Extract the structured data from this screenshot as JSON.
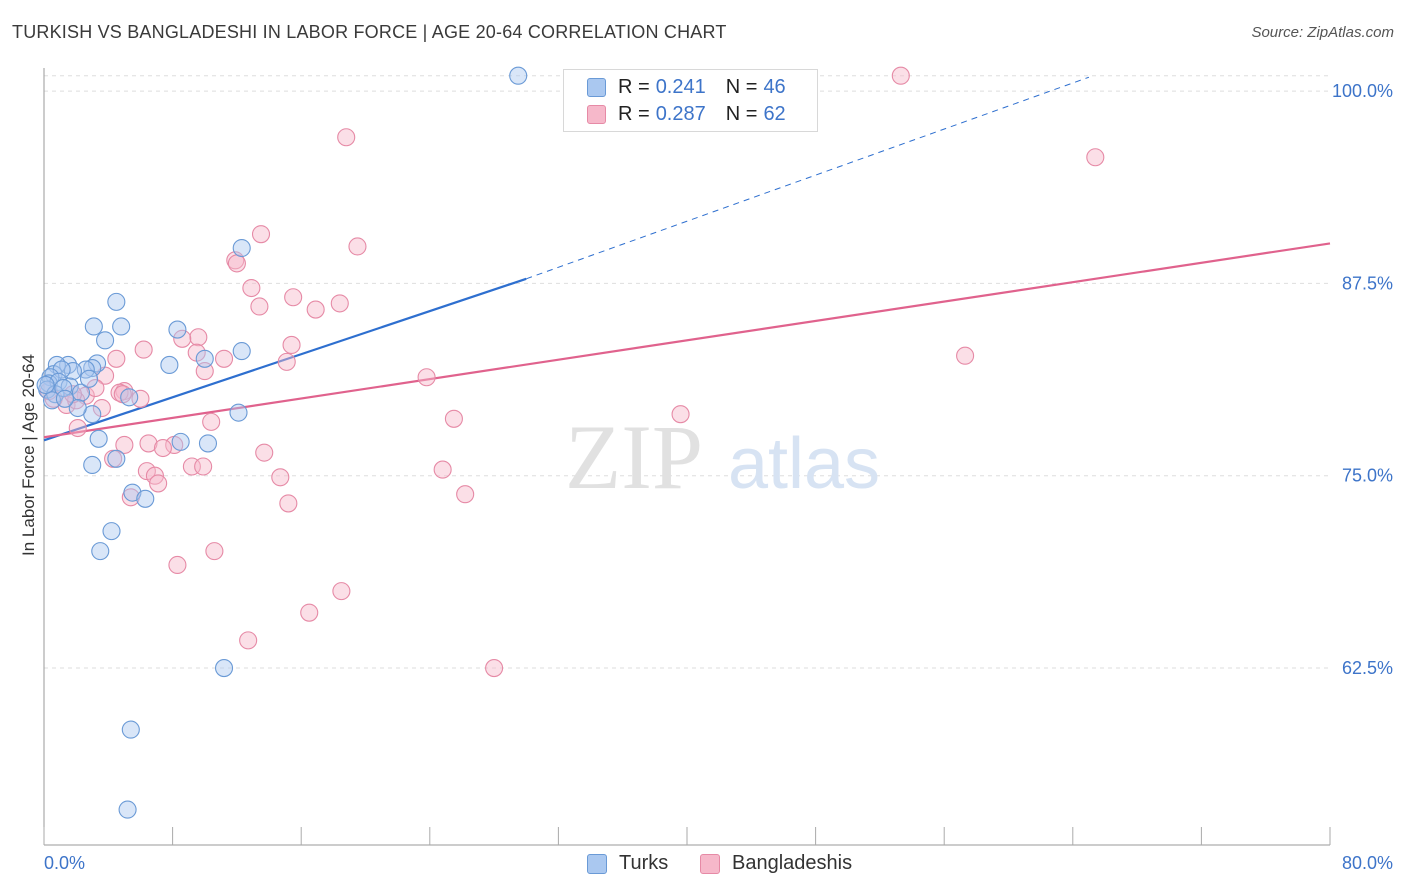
{
  "title": "TURKISH VS BANGLADESHI IN LABOR FORCE | AGE 20-64 CORRELATION CHART",
  "source": "Source: ZipAtlas.com",
  "watermark": {
    "zip": "ZIP",
    "atlas": "atlas"
  },
  "legend": {
    "turks": {
      "r_label": "R =",
      "r_value": "0.241",
      "n_label": "N =",
      "n_value": "46"
    },
    "bangladeshis": {
      "r_label": "R =",
      "r_value": "0.287",
      "n_label": "N =",
      "n_value": "62"
    }
  },
  "bottom_legend": {
    "turks": "Turks",
    "bangladeshis": "Bangladeshis"
  },
  "colors": {
    "turks_fill": "#aac8f0",
    "turks_stroke": "#6a9ad6",
    "turks_line": "#2e6fcf",
    "bang_fill": "#f6b8ca",
    "bang_stroke": "#e68aa6",
    "bang_line": "#e0628d",
    "tick_label": "#3d74c9",
    "grid": "#dedede"
  },
  "chart_data": {
    "type": "scatter",
    "title": "TURKISH VS BANGLADESHI IN LABOR FORCE | AGE 20-64 CORRELATION CHART",
    "xlabel": "",
    "ylabel": "In Labor Force | Age 20-64",
    "xlim": [
      0,
      80
    ],
    "ylim": [
      51,
      101.5
    ],
    "x_tick_labels": [
      "0.0%",
      "80.0%"
    ],
    "y_ticks": [
      62.5,
      75.0,
      87.5,
      100.0
    ],
    "y_tick_labels": [
      "62.5%",
      "75.0%",
      "87.5%",
      "100.0%"
    ],
    "grid": true,
    "series": [
      {
        "name": "Turks",
        "r": 0.241,
        "n": 46,
        "trend": {
          "x0": 0,
          "y0": 77.3,
          "x1": 30,
          "y1": 87.8,
          "dash_x1": 65,
          "dash_y1": 100.9
        },
        "points": [
          [
            29.5,
            101.0
          ],
          [
            4.5,
            86.3
          ],
          [
            4.8,
            84.7
          ],
          [
            3.1,
            84.7
          ],
          [
            8.3,
            84.5
          ],
          [
            3.8,
            83.8
          ],
          [
            12.3,
            89.8
          ],
          [
            12.3,
            83.1
          ],
          [
            10.0,
            82.6
          ],
          [
            7.8,
            82.2
          ],
          [
            3.3,
            82.3
          ],
          [
            3.0,
            82.0
          ],
          [
            1.5,
            82.2
          ],
          [
            0.8,
            82.2
          ],
          [
            2.6,
            81.9
          ],
          [
            0.6,
            81.6
          ],
          [
            1.8,
            81.8
          ],
          [
            1.1,
            81.9
          ],
          [
            0.4,
            81.4
          ],
          [
            0.3,
            81.0
          ],
          [
            0.9,
            81.1
          ],
          [
            1.6,
            80.8
          ],
          [
            0.2,
            80.6
          ],
          [
            0.7,
            80.3
          ],
          [
            1.2,
            80.7
          ],
          [
            2.3,
            80.4
          ],
          [
            0.5,
            79.9
          ],
          [
            5.3,
            80.1
          ],
          [
            12.1,
            79.1
          ],
          [
            3.0,
            79.0
          ],
          [
            2.1,
            79.4
          ],
          [
            8.5,
            77.2
          ],
          [
            3.4,
            77.4
          ],
          [
            10.2,
            77.1
          ],
          [
            4.5,
            76.1
          ],
          [
            3.0,
            75.7
          ],
          [
            5.5,
            73.9
          ],
          [
            6.3,
            73.5
          ],
          [
            4.2,
            71.4
          ],
          [
            3.5,
            70.1
          ],
          [
            11.2,
            62.5
          ],
          [
            5.4,
            58.5
          ],
          [
            5.2,
            53.3
          ],
          [
            1.3,
            80.0
          ],
          [
            0.1,
            80.9
          ],
          [
            2.8,
            81.3
          ]
        ]
      },
      {
        "name": "Bangladeshis",
        "r": 0.287,
        "n": 62,
        "trend": {
          "x0": 0,
          "y0": 77.5,
          "x1": 80,
          "y1": 90.1
        },
        "points": [
          [
            53.3,
            101.0
          ],
          [
            18.8,
            97.0
          ],
          [
            65.4,
            95.7
          ],
          [
            13.5,
            90.7
          ],
          [
            19.5,
            89.9
          ],
          [
            11.9,
            89.0
          ],
          [
            12.0,
            88.8
          ],
          [
            12.9,
            87.2
          ],
          [
            15.5,
            86.6
          ],
          [
            13.4,
            86.0
          ],
          [
            18.4,
            86.2
          ],
          [
            16.9,
            85.8
          ],
          [
            9.6,
            84.0
          ],
          [
            15.4,
            83.5
          ],
          [
            8.6,
            83.9
          ],
          [
            6.2,
            83.2
          ],
          [
            9.5,
            83.0
          ],
          [
            11.2,
            82.6
          ],
          [
            15.1,
            82.4
          ],
          [
            4.5,
            82.6
          ],
          [
            57.3,
            82.8
          ],
          [
            10.0,
            81.8
          ],
          [
            23.8,
            81.4
          ],
          [
            3.8,
            81.5
          ],
          [
            5.0,
            80.5
          ],
          [
            4.7,
            80.4
          ],
          [
            4.9,
            80.3
          ],
          [
            2.6,
            80.2
          ],
          [
            6.0,
            80.0
          ],
          [
            1.4,
            79.6
          ],
          [
            3.6,
            79.4
          ],
          [
            39.6,
            79.0
          ],
          [
            25.5,
            78.7
          ],
          [
            10.4,
            78.5
          ],
          [
            2.1,
            78.1
          ],
          [
            5.0,
            77.0
          ],
          [
            6.5,
            77.1
          ],
          [
            8.1,
            77.0
          ],
          [
            7.4,
            76.8
          ],
          [
            13.7,
            76.5
          ],
          [
            4.3,
            76.1
          ],
          [
            24.8,
            75.4
          ],
          [
            9.2,
            75.6
          ],
          [
            9.9,
            75.6
          ],
          [
            6.4,
            75.3
          ],
          [
            6.9,
            75.0
          ],
          [
            14.7,
            74.9
          ],
          [
            7.1,
            74.5
          ],
          [
            26.2,
            73.8
          ],
          [
            5.4,
            73.6
          ],
          [
            15.2,
            73.2
          ],
          [
            10.6,
            70.1
          ],
          [
            8.3,
            69.2
          ],
          [
            18.5,
            67.5
          ],
          [
            16.5,
            66.1
          ],
          [
            12.7,
            64.3
          ],
          [
            28.0,
            62.5
          ],
          [
            0.6,
            80.0
          ],
          [
            2.0,
            79.9
          ],
          [
            1.8,
            80.3
          ],
          [
            3.2,
            80.7
          ],
          [
            0.3,
            80.5
          ]
        ]
      }
    ]
  }
}
